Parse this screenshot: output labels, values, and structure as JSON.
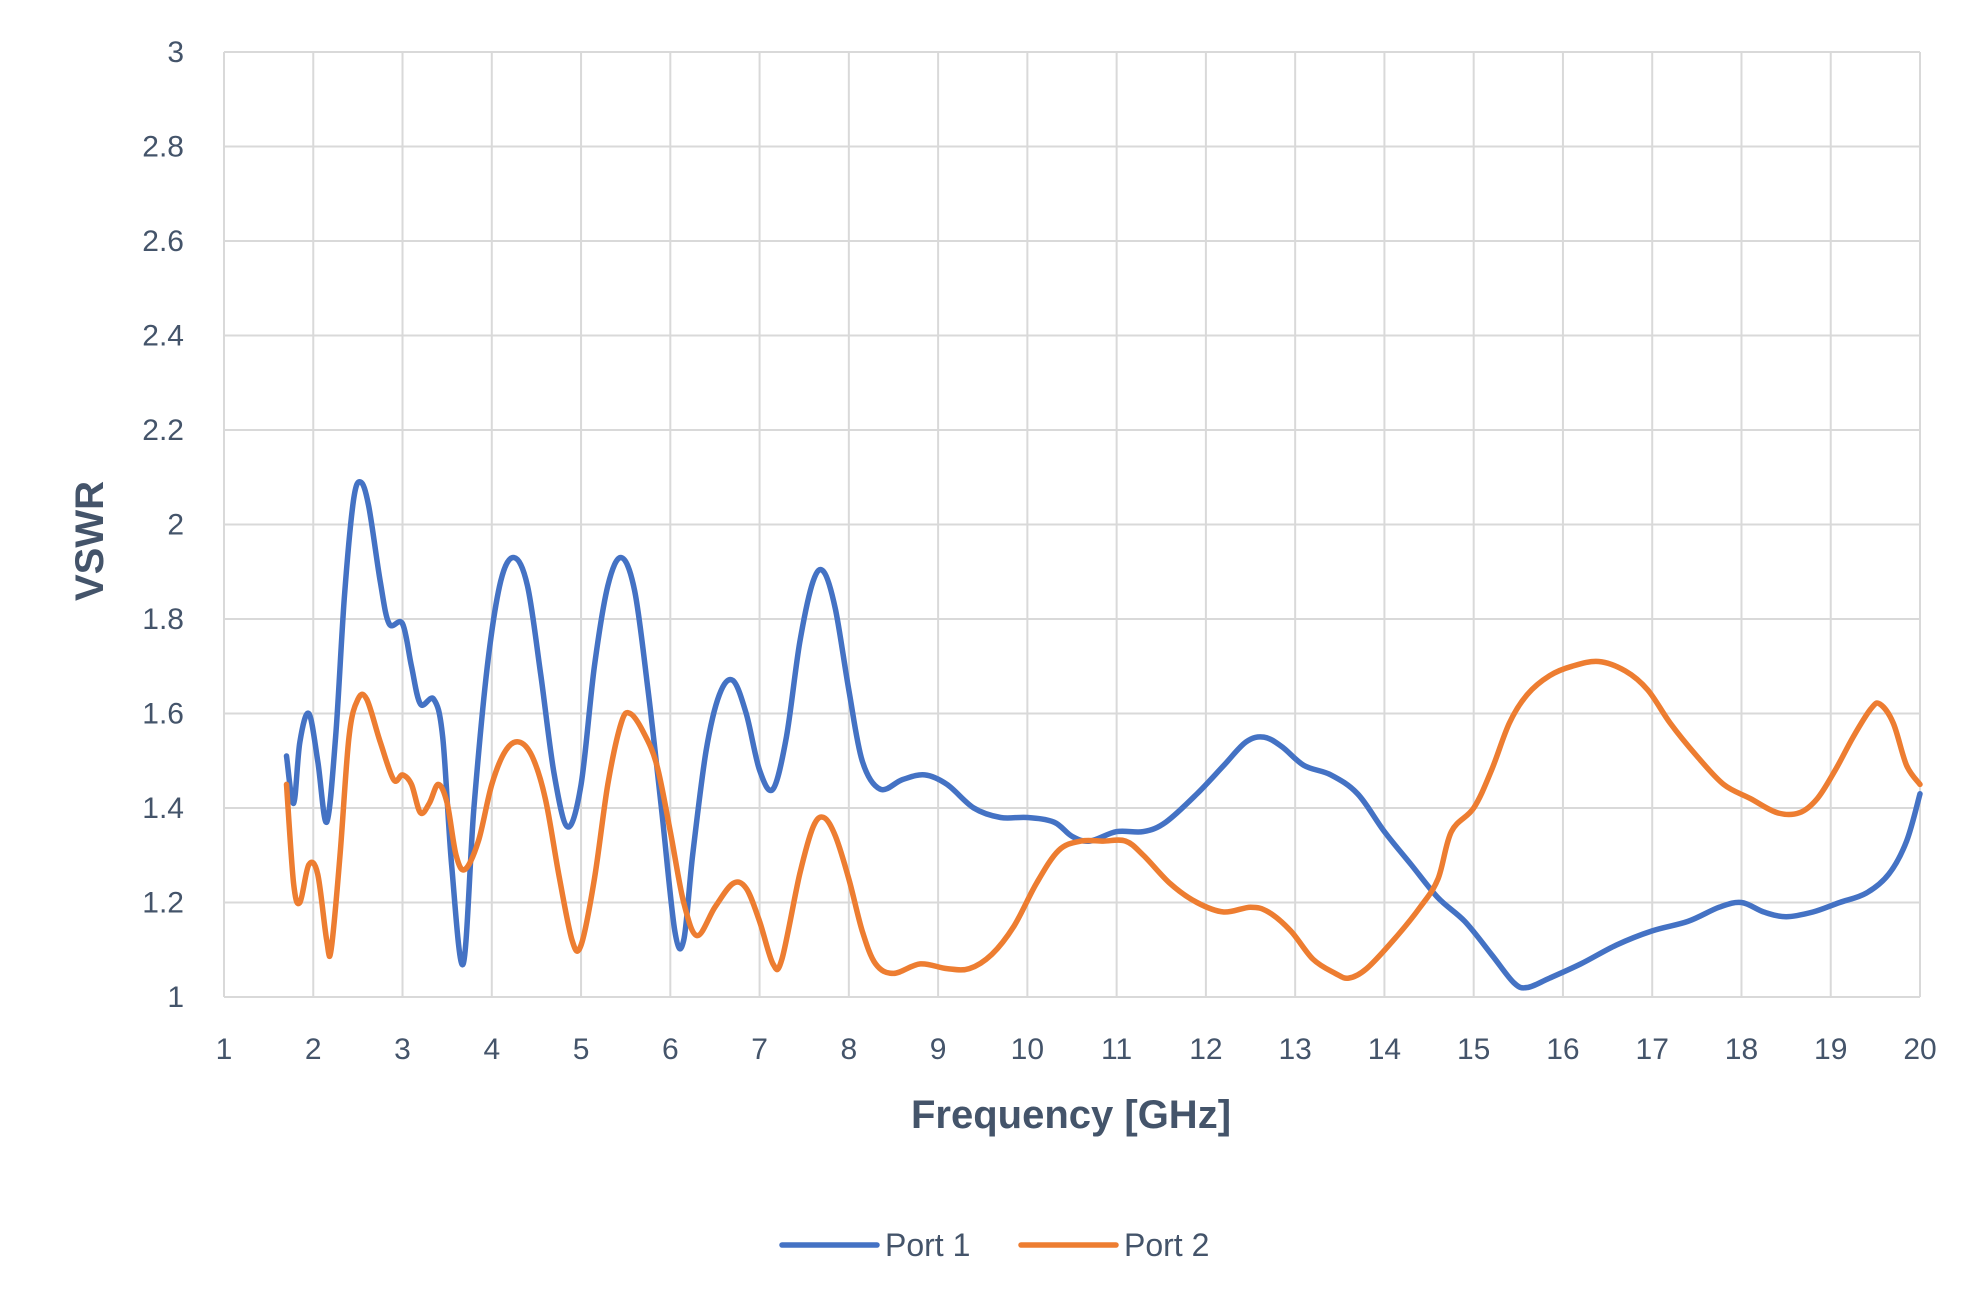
{
  "chart_data": {
    "type": "line",
    "title": "",
    "xlabel": "Frequency [GHz]",
    "ylabel": "VSWR",
    "xlim": [
      1,
      20
    ],
    "ylim": [
      1,
      3
    ],
    "x_ticks": [
      1,
      2,
      3,
      4,
      5,
      6,
      7,
      8,
      9,
      10,
      11,
      12,
      13,
      14,
      15,
      16,
      17,
      18,
      19,
      20
    ],
    "y_ticks": [
      1,
      1.2,
      1.4,
      1.6,
      1.8,
      2,
      2.2,
      2.4,
      2.6,
      2.8,
      3
    ],
    "y_tick_labels": [
      "1",
      "1.2",
      "1.4",
      "1.6",
      "1.8",
      "2",
      "2.2",
      "2.4",
      "2.6",
      "2.8",
      "3"
    ],
    "x_tick_labels": [
      "1",
      "2",
      "3",
      "4",
      "5",
      "6",
      "7",
      "8",
      "9",
      "10",
      "11",
      "12",
      "13",
      "14",
      "15",
      "16",
      "17",
      "18",
      "19",
      "20"
    ],
    "grid": true,
    "legend_position": "bottom",
    "series": [
      {
        "name": "Port 1",
        "color": "#4472c4",
        "points": [
          [
            1.7,
            1.51
          ],
          [
            1.78,
            1.41
          ],
          [
            1.85,
            1.54
          ],
          [
            1.95,
            1.6
          ],
          [
            2.05,
            1.5
          ],
          [
            2.15,
            1.37
          ],
          [
            2.25,
            1.55
          ],
          [
            2.35,
            1.85
          ],
          [
            2.45,
            2.05
          ],
          [
            2.53,
            2.09
          ],
          [
            2.62,
            2.04
          ],
          [
            2.75,
            1.88
          ],
          [
            2.85,
            1.79
          ],
          [
            3.0,
            1.79
          ],
          [
            3.1,
            1.7
          ],
          [
            3.2,
            1.62
          ],
          [
            3.35,
            1.63
          ],
          [
            3.45,
            1.55
          ],
          [
            3.55,
            1.28
          ],
          [
            3.68,
            1.07
          ],
          [
            3.8,
            1.4
          ],
          [
            3.95,
            1.7
          ],
          [
            4.1,
            1.88
          ],
          [
            4.25,
            1.93
          ],
          [
            4.4,
            1.87
          ],
          [
            4.55,
            1.68
          ],
          [
            4.7,
            1.47
          ],
          [
            4.85,
            1.36
          ],
          [
            5.0,
            1.45
          ],
          [
            5.15,
            1.7
          ],
          [
            5.3,
            1.87
          ],
          [
            5.45,
            1.93
          ],
          [
            5.6,
            1.86
          ],
          [
            5.75,
            1.65
          ],
          [
            5.9,
            1.4
          ],
          [
            6.05,
            1.14
          ],
          [
            6.15,
            1.12
          ],
          [
            6.25,
            1.3
          ],
          [
            6.4,
            1.52
          ],
          [
            6.55,
            1.64
          ],
          [
            6.7,
            1.67
          ],
          [
            6.85,
            1.6
          ],
          [
            7.0,
            1.48
          ],
          [
            7.15,
            1.44
          ],
          [
            7.3,
            1.55
          ],
          [
            7.45,
            1.75
          ],
          [
            7.6,
            1.88
          ],
          [
            7.72,
            1.9
          ],
          [
            7.85,
            1.82
          ],
          [
            8.0,
            1.65
          ],
          [
            8.15,
            1.5
          ],
          [
            8.35,
            1.44
          ],
          [
            8.6,
            1.46
          ],
          [
            8.85,
            1.47
          ],
          [
            9.1,
            1.45
          ],
          [
            9.4,
            1.4
          ],
          [
            9.7,
            1.38
          ],
          [
            10.0,
            1.38
          ],
          [
            10.3,
            1.37
          ],
          [
            10.5,
            1.34
          ],
          [
            10.7,
            1.33
          ],
          [
            11.0,
            1.35
          ],
          [
            11.3,
            1.35
          ],
          [
            11.55,
            1.37
          ],
          [
            11.9,
            1.43
          ],
          [
            12.2,
            1.49
          ],
          [
            12.45,
            1.54
          ],
          [
            12.65,
            1.55
          ],
          [
            12.85,
            1.53
          ],
          [
            13.1,
            1.49
          ],
          [
            13.4,
            1.47
          ],
          [
            13.7,
            1.43
          ],
          [
            14.0,
            1.35
          ],
          [
            14.3,
            1.28
          ],
          [
            14.6,
            1.21
          ],
          [
            14.9,
            1.16
          ],
          [
            15.2,
            1.09
          ],
          [
            15.45,
            1.03
          ],
          [
            15.6,
            1.02
          ],
          [
            15.85,
            1.04
          ],
          [
            16.2,
            1.07
          ],
          [
            16.6,
            1.11
          ],
          [
            17.0,
            1.14
          ],
          [
            17.4,
            1.16
          ],
          [
            17.75,
            1.19
          ],
          [
            18.0,
            1.2
          ],
          [
            18.25,
            1.18
          ],
          [
            18.5,
            1.17
          ],
          [
            18.8,
            1.18
          ],
          [
            19.1,
            1.2
          ],
          [
            19.4,
            1.22
          ],
          [
            19.65,
            1.26
          ],
          [
            19.85,
            1.33
          ],
          [
            20.0,
            1.43
          ]
        ]
      },
      {
        "name": "Port 2",
        "color": "#ed7d31",
        "points": [
          [
            1.7,
            1.45
          ],
          [
            1.78,
            1.24
          ],
          [
            1.85,
            1.2
          ],
          [
            1.95,
            1.28
          ],
          [
            2.05,
            1.26
          ],
          [
            2.15,
            1.12
          ],
          [
            2.2,
            1.1
          ],
          [
            2.3,
            1.3
          ],
          [
            2.4,
            1.55
          ],
          [
            2.5,
            1.63
          ],
          [
            2.6,
            1.63
          ],
          [
            2.75,
            1.54
          ],
          [
            2.9,
            1.46
          ],
          [
            3.0,
            1.47
          ],
          [
            3.1,
            1.45
          ],
          [
            3.2,
            1.39
          ],
          [
            3.3,
            1.41
          ],
          [
            3.4,
            1.45
          ],
          [
            3.5,
            1.41
          ],
          [
            3.6,
            1.3
          ],
          [
            3.7,
            1.27
          ],
          [
            3.85,
            1.33
          ],
          [
            4.0,
            1.45
          ],
          [
            4.15,
            1.52
          ],
          [
            4.3,
            1.54
          ],
          [
            4.45,
            1.51
          ],
          [
            4.6,
            1.42
          ],
          [
            4.75,
            1.26
          ],
          [
            4.9,
            1.12
          ],
          [
            5.0,
            1.11
          ],
          [
            5.15,
            1.25
          ],
          [
            5.3,
            1.45
          ],
          [
            5.45,
            1.58
          ],
          [
            5.55,
            1.6
          ],
          [
            5.7,
            1.56
          ],
          [
            5.85,
            1.49
          ],
          [
            6.0,
            1.35
          ],
          [
            6.15,
            1.2
          ],
          [
            6.3,
            1.13
          ],
          [
            6.5,
            1.19
          ],
          [
            6.7,
            1.24
          ],
          [
            6.85,
            1.23
          ],
          [
            7.0,
            1.16
          ],
          [
            7.15,
            1.07
          ],
          [
            7.25,
            1.08
          ],
          [
            7.45,
            1.26
          ],
          [
            7.6,
            1.36
          ],
          [
            7.72,
            1.38
          ],
          [
            7.85,
            1.34
          ],
          [
            8.0,
            1.25
          ],
          [
            8.15,
            1.14
          ],
          [
            8.3,
            1.07
          ],
          [
            8.5,
            1.05
          ],
          [
            8.8,
            1.07
          ],
          [
            9.1,
            1.06
          ],
          [
            9.35,
            1.06
          ],
          [
            9.6,
            1.09
          ],
          [
            9.85,
            1.15
          ],
          [
            10.1,
            1.24
          ],
          [
            10.35,
            1.31
          ],
          [
            10.6,
            1.33
          ],
          [
            10.85,
            1.33
          ],
          [
            11.1,
            1.33
          ],
          [
            11.3,
            1.3
          ],
          [
            11.6,
            1.24
          ],
          [
            11.9,
            1.2
          ],
          [
            12.2,
            1.18
          ],
          [
            12.5,
            1.19
          ],
          [
            12.7,
            1.18
          ],
          [
            12.95,
            1.14
          ],
          [
            13.2,
            1.08
          ],
          [
            13.45,
            1.05
          ],
          [
            13.6,
            1.04
          ],
          [
            13.8,
            1.06
          ],
          [
            14.1,
            1.12
          ],
          [
            14.4,
            1.19
          ],
          [
            14.6,
            1.25
          ],
          [
            14.75,
            1.35
          ],
          [
            15.0,
            1.4
          ],
          [
            15.2,
            1.48
          ],
          [
            15.4,
            1.58
          ],
          [
            15.6,
            1.64
          ],
          [
            15.85,
            1.68
          ],
          [
            16.1,
            1.7
          ],
          [
            16.4,
            1.71
          ],
          [
            16.7,
            1.69
          ],
          [
            16.95,
            1.65
          ],
          [
            17.2,
            1.58
          ],
          [
            17.5,
            1.51
          ],
          [
            17.8,
            1.45
          ],
          [
            18.1,
            1.42
          ],
          [
            18.4,
            1.39
          ],
          [
            18.65,
            1.39
          ],
          [
            18.85,
            1.42
          ],
          [
            19.05,
            1.48
          ],
          [
            19.25,
            1.55
          ],
          [
            19.45,
            1.61
          ],
          [
            19.55,
            1.62
          ],
          [
            19.7,
            1.58
          ],
          [
            19.85,
            1.49
          ],
          [
            20.0,
            1.45
          ]
        ]
      }
    ]
  }
}
